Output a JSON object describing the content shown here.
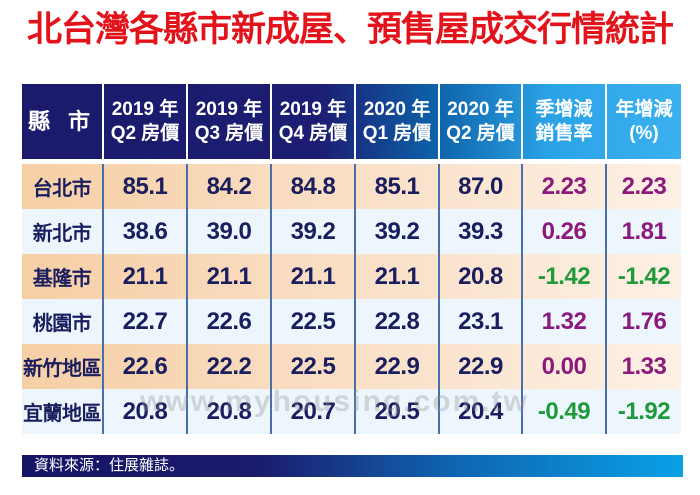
{
  "title": "北台灣各縣市新成屋、預售屋成交行情統計",
  "table": {
    "headers": [
      "縣 市",
      "2019 年\nQ2 房價",
      "2019 年\nQ3 房價",
      "2019 年\nQ4 房價",
      "2020 年\nQ1 房價",
      "2020 年\nQ2 房價",
      "季增減\n銷售率",
      "年增減\n(%)"
    ],
    "header_lines": [
      [
        "縣 市"
      ],
      [
        "2019 年",
        "Q2 房價"
      ],
      [
        "2019 年",
        "Q3 房價"
      ],
      [
        "2019 年",
        "Q4 房價"
      ],
      [
        "2020 年",
        "Q1 房價"
      ],
      [
        "2020 年",
        "Q2 房價"
      ],
      [
        "季增減",
        "銷售率"
      ],
      [
        "年增減",
        "(%)"
      ]
    ],
    "rows": [
      [
        "台北市",
        "85.1",
        "84.2",
        "84.8",
        "85.1",
        "87.0",
        "2.23",
        "2.23"
      ],
      [
        "新北市",
        "38.6",
        "39.0",
        "39.2",
        "39.2",
        "39.3",
        "0.26",
        "1.81"
      ],
      [
        "基隆市",
        "21.1",
        "21.1",
        "21.1",
        "21.1",
        "20.8",
        "-1.42",
        "-1.42"
      ],
      [
        "桃園市",
        "22.7",
        "22.6",
        "22.5",
        "22.8",
        "23.1",
        "1.32",
        "1.76"
      ],
      [
        "新竹地區",
        "22.6",
        "22.2",
        "22.5",
        "22.9",
        "22.9",
        "0.00",
        "1.33"
      ],
      [
        "宜蘭地區",
        "20.8",
        "20.8",
        "20.7",
        "20.5",
        "20.4",
        "-0.49",
        "-1.92"
      ]
    ]
  },
  "watermark": {
    "logo_text": "住展 MY",
    "url": "www.myhousing.com.tw"
  },
  "footer": "資料來源：住展雜誌。",
  "colors": {
    "title": "#e3131b",
    "price": "#1a1d5e",
    "positive": "#8b1a7c",
    "negative": "#1f9a3a",
    "header_dark": "#1b1a6b",
    "header_light": "#3bb0ee"
  }
}
